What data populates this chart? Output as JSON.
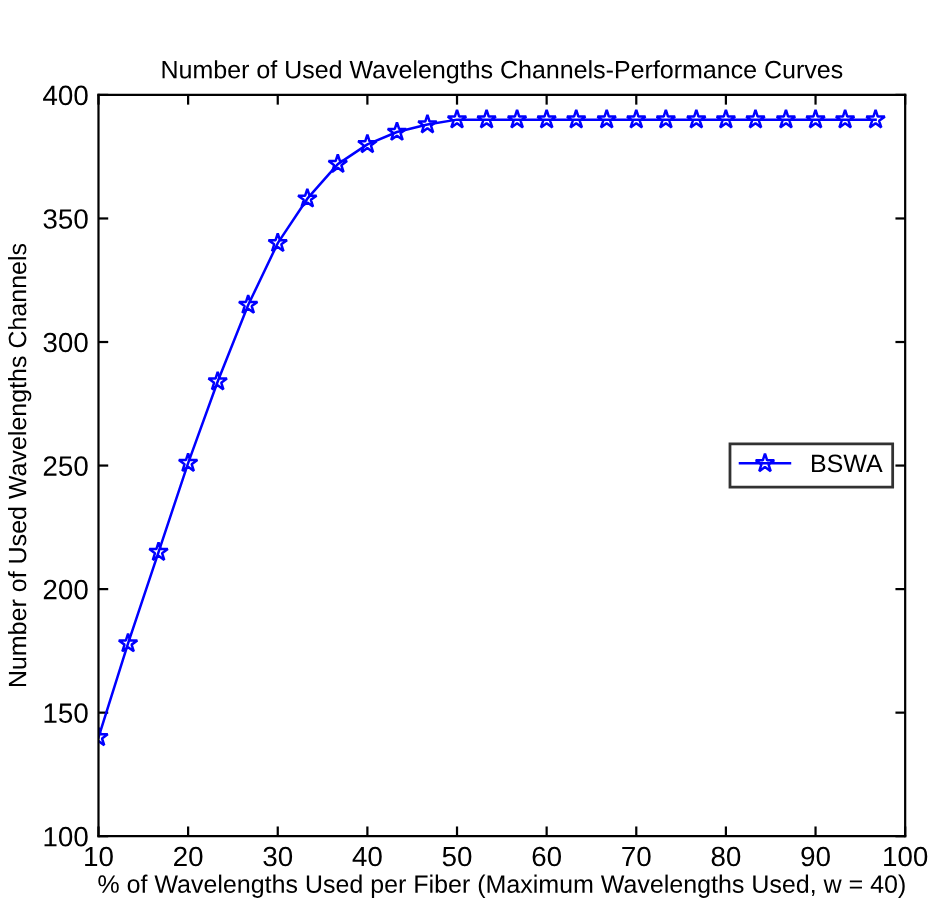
{
  "chart_data": {
    "type": "line",
    "title": "Number of Used Wavelengths Channels-Performance Curves",
    "xlabel": "% of Wavelengths Used per Fiber (Maximum Wavelengths Used, w = 40)",
    "ylabel": "Number of Used Wavelengths Channels",
    "x": [
      10,
      13.3,
      16.7,
      20,
      23.3,
      26.7,
      30,
      33.3,
      36.7,
      40,
      43.3,
      46.7,
      50,
      53.3,
      56.7,
      60,
      63.3,
      66.7,
      70,
      73.3,
      76.7,
      80,
      83.3,
      86.7,
      90,
      93.3,
      96.7
    ],
    "series": [
      {
        "name": "BSWA",
        "color": "#0000ff",
        "values": [
          140,
          178,
          215,
          251,
          284,
          315,
          340,
          358,
          372,
          380,
          385,
          388,
          390,
          390,
          390,
          390,
          390,
          390,
          390,
          390,
          390,
          390,
          390,
          390,
          390,
          390,
          390
        ]
      }
    ],
    "xlim": [
      10,
      100
    ],
    "xticks": [
      10,
      20,
      30,
      40,
      50,
      60,
      70,
      80,
      90,
      100
    ],
    "ylim": [
      100,
      400
    ],
    "yticks": [
      100,
      150,
      200,
      250,
      300,
      350,
      400
    ],
    "grid": false,
    "legend": "right",
    "marker": "star",
    "line_style": "solid"
  }
}
